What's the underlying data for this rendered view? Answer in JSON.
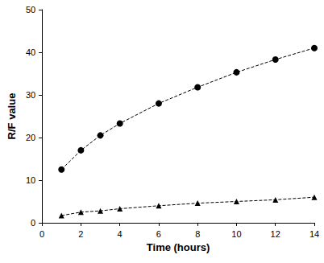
{
  "chart_data": {
    "type": "line",
    "x_label": "Time (hours)",
    "y_label": "R/F value",
    "x": [
      1,
      2,
      3,
      4,
      6,
      8,
      10,
      12,
      14
    ],
    "series": [
      {
        "color": "#000000",
        "marker": "circle",
        "line_style": "dashed",
        "values": [
          12.5,
          17,
          20.5,
          23.3,
          28,
          31.8,
          35.3,
          38.3,
          41
        ]
      },
      {
        "color": "#000000",
        "marker": "triangle",
        "line_style": "dashed",
        "values": [
          1.7,
          2.5,
          2.8,
          3.3,
          4,
          4.6,
          5,
          5.4,
          6
        ]
      }
    ],
    "xlim": [
      0,
      14
    ],
    "xticks": [
      0,
      2,
      4,
      6,
      8,
      10,
      12,
      14
    ],
    "ylim": [
      0,
      50
    ],
    "yticks": [
      0,
      10,
      20,
      30,
      40,
      50
    ],
    "grid": false
  }
}
